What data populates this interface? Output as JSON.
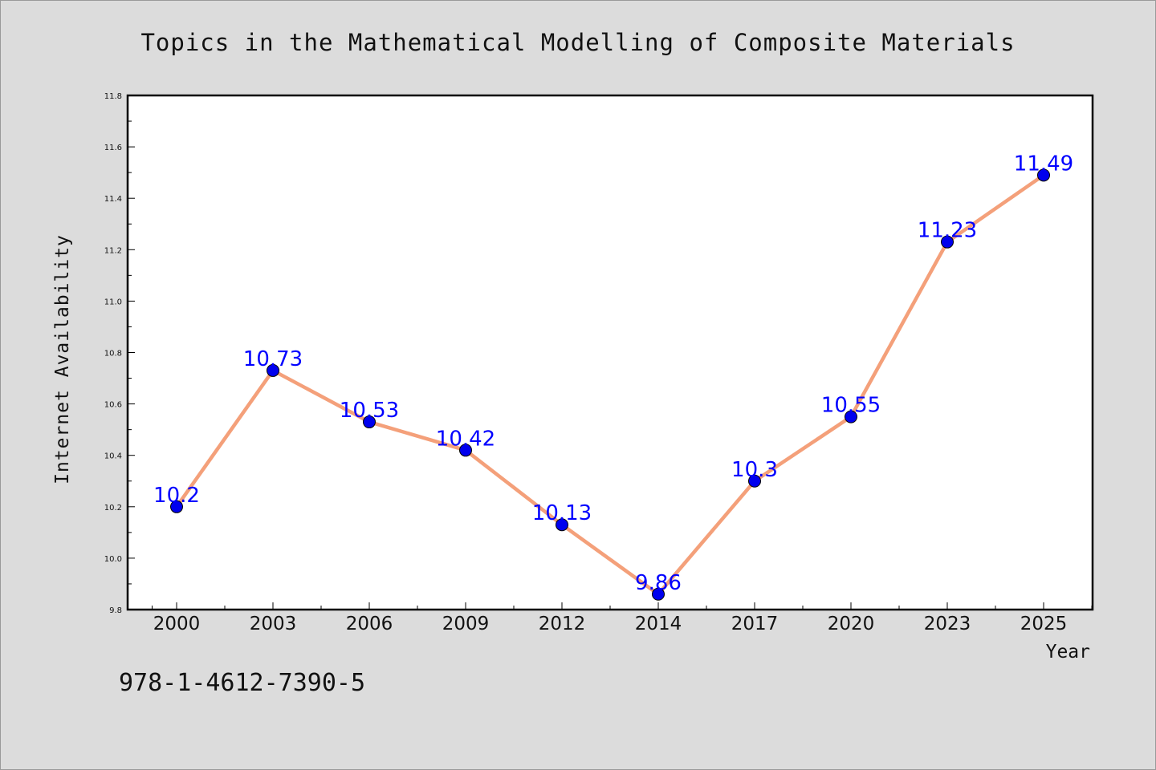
{
  "footer_code": "978-1-4612-7390-5",
  "chart_data": {
    "type": "line",
    "title": "Topics in the Mathematical Modelling of Composite Materials",
    "xlabel": "Year",
    "ylabel": "Internet Availability",
    "categories": [
      "2000",
      "2003",
      "2006",
      "2009",
      "2012",
      "2014",
      "2017",
      "2020",
      "2023",
      "2025"
    ],
    "series": [
      {
        "values": [
          10.2,
          10.73,
          10.53,
          10.42,
          10.13,
          9.86,
          10.3,
          10.55,
          11.23,
          11.49
        ],
        "data_labels": [
          "10.2",
          "10.73",
          "10.53",
          "10.42",
          "10.13",
          "9.86",
          "10.3",
          "10.55",
          "11.23",
          "11.49"
        ]
      }
    ],
    "ylim": [
      9.8,
      11.8
    ],
    "yticks": [
      "9.8",
      "10.0",
      "10.2",
      "10.4",
      "10.6",
      "10.8",
      "11.0",
      "11.2",
      "11.4",
      "11.6",
      "11.8"
    ],
    "grid": false,
    "legend": "none",
    "colors": {
      "line": "#f4a07a",
      "marker": "#0000ee",
      "marker_edge": "#000000",
      "label": "#0000ff",
      "axes": "#000000"
    }
  }
}
